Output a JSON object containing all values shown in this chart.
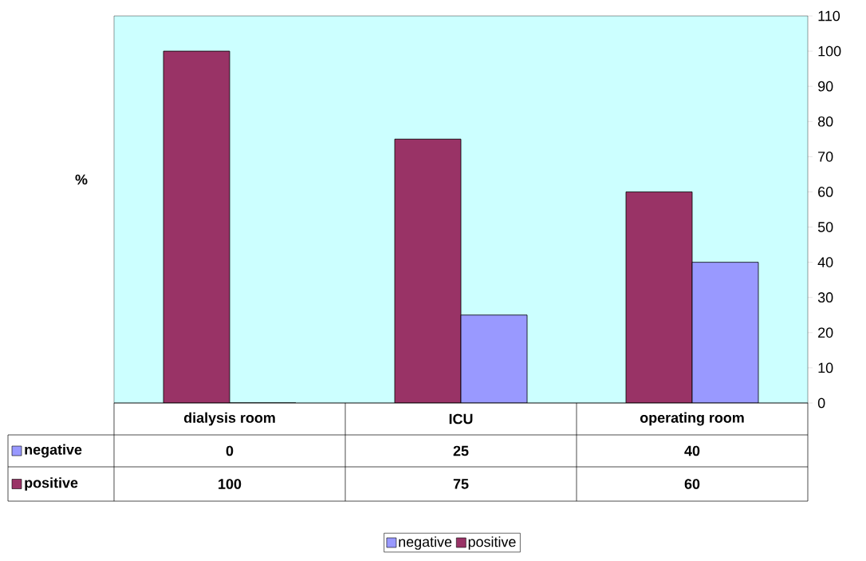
{
  "chart_data": {
    "type": "bar",
    "ylabel": "%",
    "categories": [
      "dialysis room",
      "ICU",
      "operating room"
    ],
    "series": [
      {
        "name": "positive",
        "color": "#993366",
        "values": [
          100,
          75,
          60
        ]
      },
      {
        "name": "negative",
        "color": "#9999ff",
        "values": [
          0,
          25,
          40
        ]
      }
    ],
    "ylim": [
      0,
      110
    ],
    "yticks": [
      0,
      10,
      20,
      30,
      40,
      50,
      60,
      70,
      80,
      90,
      100,
      110
    ],
    "data_labels": true,
    "legend": "bottom"
  }
}
